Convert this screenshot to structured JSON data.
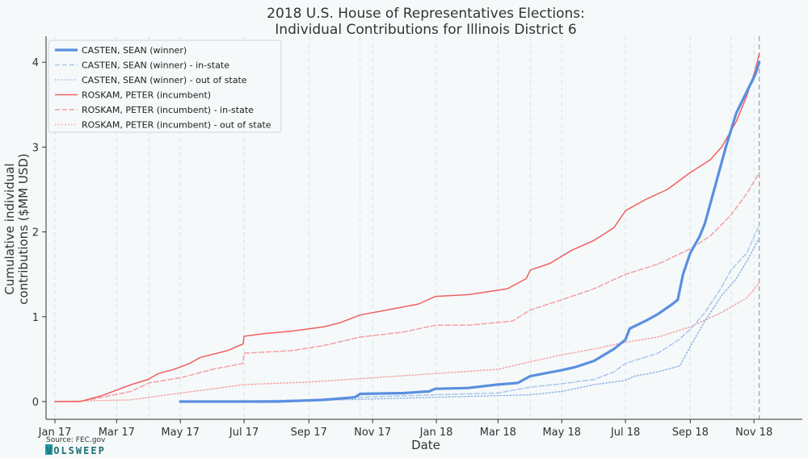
{
  "chart_data": {
    "type": "line",
    "title": "2018 U.S. House of Representatives Elections:",
    "subtitle": "Individual Contributions for Illinois District 6",
    "xlabel": "Date",
    "ylabel_line1": "Cumulative individual",
    "ylabel_line2": "contributions ($MM USD)",
    "x_ticks": [
      "Jan 17",
      "Mar 17",
      "May 17",
      "Jul 17",
      "Sep 17",
      "Nov 17",
      "Jan 18",
      "Mar 18",
      "May 18",
      "Jul 18",
      "Sep 18",
      "Nov 18"
    ],
    "y_ticks": [
      "0",
      "1",
      "2",
      "3",
      "4"
    ],
    "xlim": [
      "2017-01-01",
      "2018-12-01"
    ],
    "ylim": [
      -0.22,
      4.3
    ],
    "election_day": "2018-11-06",
    "legend_position": "top-left",
    "grid": "vertical dashed",
    "series": [
      {
        "name": "CASTEN, SEAN (winner)",
        "color": "#5a8fe0",
        "style": "solid-thick",
        "points": [
          [
            "2017-05-01",
            0.0
          ],
          [
            "2017-08-01",
            0.0
          ],
          [
            "2017-09-15",
            0.02
          ],
          [
            "2017-10-15",
            0.05
          ],
          [
            "2017-10-20",
            0.09
          ],
          [
            "2017-12-01",
            0.1
          ],
          [
            "2017-12-25",
            0.12
          ],
          [
            "2017-12-31",
            0.15
          ],
          [
            "2018-01-31",
            0.16
          ],
          [
            "2018-02-28",
            0.2
          ],
          [
            "2018-03-20",
            0.22
          ],
          [
            "2018-04-01",
            0.3
          ],
          [
            "2018-05-01",
            0.37
          ],
          [
            "2018-05-15",
            0.41
          ],
          [
            "2018-06-01",
            0.48
          ],
          [
            "2018-06-20",
            0.62
          ],
          [
            "2018-07-01",
            0.73
          ],
          [
            "2018-07-05",
            0.86
          ],
          [
            "2018-07-20",
            0.95
          ],
          [
            "2018-08-01",
            1.03
          ],
          [
            "2018-08-15",
            1.15
          ],
          [
            "2018-08-20",
            1.2
          ],
          [
            "2018-08-25",
            1.5
          ],
          [
            "2018-09-01",
            1.75
          ],
          [
            "2018-09-10",
            1.95
          ],
          [
            "2018-09-15",
            2.1
          ],
          [
            "2018-09-25",
            2.55
          ],
          [
            "2018-10-05",
            3.0
          ],
          [
            "2018-10-15",
            3.4
          ],
          [
            "2018-10-25",
            3.65
          ],
          [
            "2018-11-02",
            3.85
          ],
          [
            "2018-11-06",
            4.0
          ]
        ]
      },
      {
        "name": "CASTEN, SEAN (winner) - in-state",
        "color": "#a9c6ec",
        "style": "dashed",
        "points": [
          [
            "2017-06-01",
            0.0
          ],
          [
            "2017-09-01",
            0.02
          ],
          [
            "2017-10-20",
            0.05
          ],
          [
            "2018-01-01",
            0.08
          ],
          [
            "2018-03-01",
            0.1
          ],
          [
            "2018-04-01",
            0.17
          ],
          [
            "2018-05-01",
            0.21
          ],
          [
            "2018-06-01",
            0.26
          ],
          [
            "2018-06-20",
            0.35
          ],
          [
            "2018-07-01",
            0.45
          ],
          [
            "2018-08-01",
            0.57
          ],
          [
            "2018-08-20",
            0.72
          ],
          [
            "2018-09-01",
            0.85
          ],
          [
            "2018-09-15",
            1.05
          ],
          [
            "2018-10-01",
            1.35
          ],
          [
            "2018-10-10",
            1.55
          ],
          [
            "2018-10-25",
            1.75
          ],
          [
            "2018-11-06",
            2.08
          ]
        ]
      },
      {
        "name": "CASTEN, SEAN (winner) - out of state",
        "color": "#93b4e6",
        "style": "dotted",
        "points": [
          [
            "2017-06-01",
            0.0
          ],
          [
            "2017-10-01",
            0.02
          ],
          [
            "2018-01-01",
            0.05
          ],
          [
            "2018-04-01",
            0.08
          ],
          [
            "2018-05-01",
            0.12
          ],
          [
            "2018-06-01",
            0.2
          ],
          [
            "2018-07-01",
            0.25
          ],
          [
            "2018-07-10",
            0.3
          ],
          [
            "2018-08-01",
            0.35
          ],
          [
            "2018-08-22",
            0.42
          ],
          [
            "2018-09-01",
            0.65
          ],
          [
            "2018-09-15",
            0.95
          ],
          [
            "2018-10-01",
            1.25
          ],
          [
            "2018-10-15",
            1.45
          ],
          [
            "2018-10-25",
            1.65
          ],
          [
            "2018-11-06",
            1.93
          ]
        ]
      },
      {
        "name": "ROSKAM, PETER (incumbent)",
        "color": "#f06060",
        "style": "solid",
        "points": [
          [
            "2017-01-01",
            0.0
          ],
          [
            "2017-01-25",
            0.0
          ],
          [
            "2017-02-15",
            0.07
          ],
          [
            "2017-03-15",
            0.2
          ],
          [
            "2017-03-31",
            0.26
          ],
          [
            "2017-04-10",
            0.33
          ],
          [
            "2017-04-25",
            0.38
          ],
          [
            "2017-05-10",
            0.45
          ],
          [
            "2017-05-20",
            0.52
          ],
          [
            "2017-06-15",
            0.6
          ],
          [
            "2017-06-30",
            0.68
          ],
          [
            "2017-07-01",
            0.77
          ],
          [
            "2017-07-20",
            0.8
          ],
          [
            "2017-08-15",
            0.83
          ],
          [
            "2017-09-15",
            0.88
          ],
          [
            "2017-10-01",
            0.93
          ],
          [
            "2017-10-20",
            1.02
          ],
          [
            "2017-11-15",
            1.08
          ],
          [
            "2017-12-15",
            1.15
          ],
          [
            "2017-12-31",
            1.24
          ],
          [
            "2018-02-01",
            1.26
          ],
          [
            "2018-03-10",
            1.33
          ],
          [
            "2018-03-28",
            1.45
          ],
          [
            "2018-04-01",
            1.55
          ],
          [
            "2018-04-20",
            1.63
          ],
          [
            "2018-05-10",
            1.78
          ],
          [
            "2018-06-01",
            1.9
          ],
          [
            "2018-06-20",
            2.05
          ],
          [
            "2018-07-01",
            2.25
          ],
          [
            "2018-07-20",
            2.38
          ],
          [
            "2018-08-10",
            2.5
          ],
          [
            "2018-09-01",
            2.7
          ],
          [
            "2018-09-20",
            2.85
          ],
          [
            "2018-10-01",
            3.0
          ],
          [
            "2018-10-15",
            3.3
          ],
          [
            "2018-10-25",
            3.6
          ],
          [
            "2018-11-02",
            3.9
          ],
          [
            "2018-11-06",
            4.1
          ]
        ]
      },
      {
        "name": "ROSKAM, PETER (incumbent) - in-state",
        "color": "#f5a0a0",
        "style": "dashed",
        "points": [
          [
            "2017-01-01",
            0.0
          ],
          [
            "2017-01-25",
            0.0
          ],
          [
            "2017-02-15",
            0.05
          ],
          [
            "2017-03-15",
            0.12
          ],
          [
            "2017-04-01",
            0.22
          ],
          [
            "2017-05-01",
            0.28
          ],
          [
            "2017-06-01",
            0.38
          ],
          [
            "2017-06-30",
            0.45
          ],
          [
            "2017-07-01",
            0.57
          ],
          [
            "2017-08-15",
            0.6
          ],
          [
            "2017-09-15",
            0.66
          ],
          [
            "2017-10-20",
            0.76
          ],
          [
            "2017-12-01",
            0.82
          ],
          [
            "2017-12-31",
            0.9
          ],
          [
            "2018-02-01",
            0.9
          ],
          [
            "2018-03-15",
            0.95
          ],
          [
            "2018-04-01",
            1.08
          ],
          [
            "2018-05-01",
            1.2
          ],
          [
            "2018-06-01",
            1.33
          ],
          [
            "2018-07-01",
            1.5
          ],
          [
            "2018-08-01",
            1.62
          ],
          [
            "2018-09-01",
            1.8
          ],
          [
            "2018-09-20",
            1.95
          ],
          [
            "2018-10-10",
            2.2
          ],
          [
            "2018-10-25",
            2.45
          ],
          [
            "2018-11-06",
            2.7
          ]
        ]
      },
      {
        "name": "ROSKAM, PETER (incumbent) - out of state",
        "color": "#f6a3a3",
        "style": "dotted",
        "points": [
          [
            "2017-01-01",
            0.0
          ],
          [
            "2017-03-15",
            0.02
          ],
          [
            "2017-04-01",
            0.05
          ],
          [
            "2017-05-01",
            0.1
          ],
          [
            "2017-06-01",
            0.15
          ],
          [
            "2017-07-01",
            0.2
          ],
          [
            "2017-09-01",
            0.23
          ],
          [
            "2017-10-20",
            0.27
          ],
          [
            "2017-12-31",
            0.33
          ],
          [
            "2018-03-01",
            0.38
          ],
          [
            "2018-04-01",
            0.47
          ],
          [
            "2018-05-01",
            0.55
          ],
          [
            "2018-06-01",
            0.62
          ],
          [
            "2018-07-01",
            0.7
          ],
          [
            "2018-08-01",
            0.76
          ],
          [
            "2018-09-01",
            0.88
          ],
          [
            "2018-10-01",
            1.05
          ],
          [
            "2018-10-15",
            1.15
          ],
          [
            "2018-10-25",
            1.22
          ],
          [
            "2018-11-06",
            1.4
          ]
        ]
      }
    ]
  },
  "footer": {
    "source": "Source: FEC.gov",
    "logo": "VOLSWEEP"
  }
}
